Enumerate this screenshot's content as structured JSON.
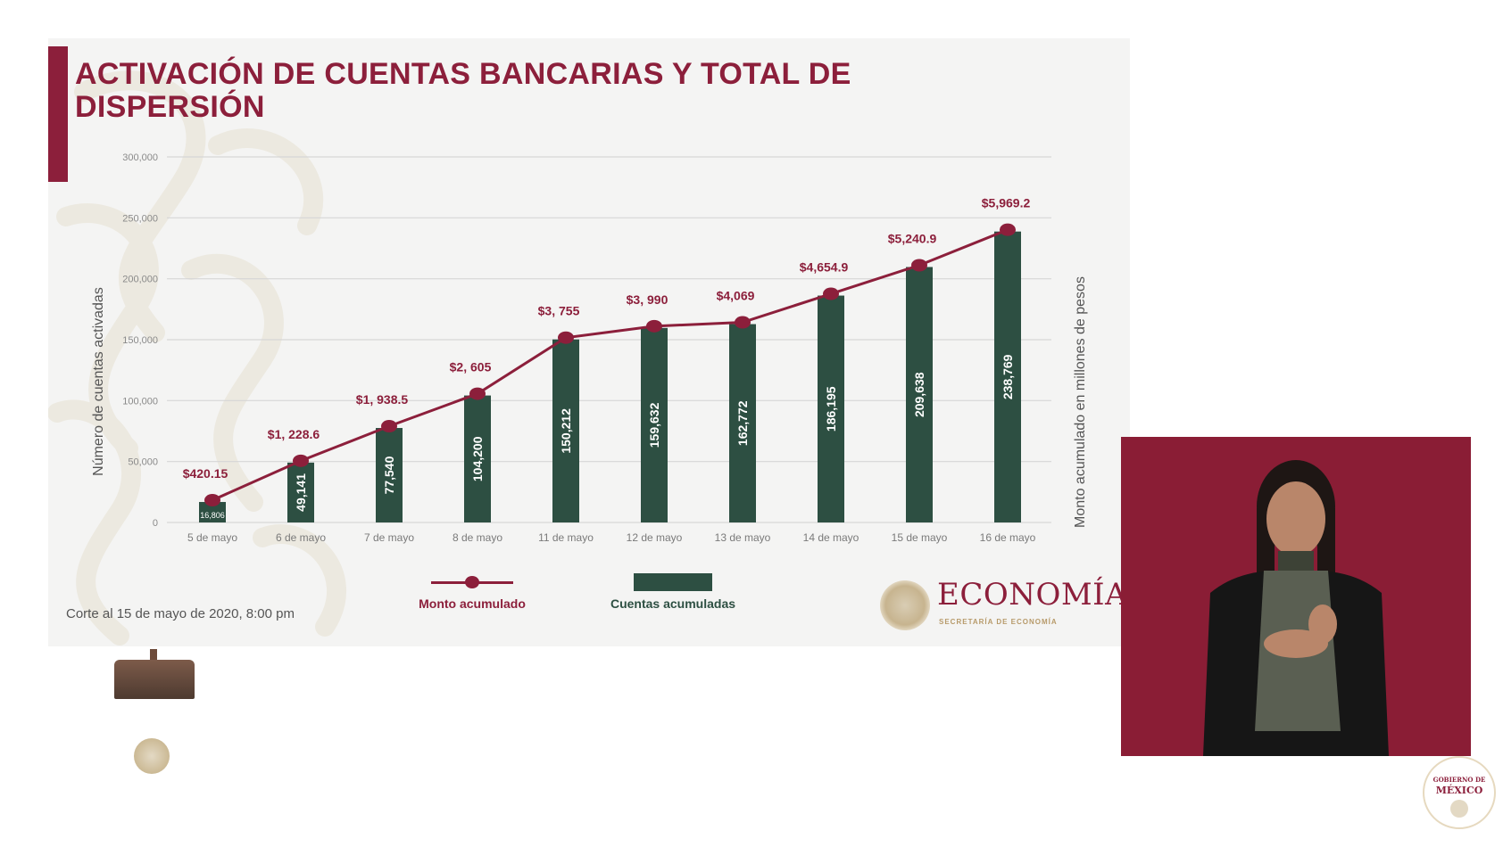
{
  "slide": {
    "title": "ACTIVACIÓN DE CUENTAS BANCARIAS Y TOTAL DE DISPERSIÓN",
    "title_line1": "ACTIVACIÓN DE CUENTAS BANCARIAS Y TOTAL DE",
    "title_line2": "DISPERSIÓN",
    "footnote": "Corte al 15 de mayo de 2020, 8:00 pm",
    "logo": {
      "name": "ECONOMÍA",
      "subtitle": "SECRETARÍA DE ECONOMÍA"
    }
  },
  "colors": {
    "accent": "#8c1f3b",
    "bar": "#2d4f42",
    "slide_bg": "#f4f4f3",
    "grid": "#d6d6d6",
    "axis_text": "#777777",
    "interpreter_bg": "#8a1d35"
  },
  "chart_data": {
    "type": "bar+line",
    "title": "ACTIVACIÓN DE CUENTAS BANCARIAS Y TOTAL DE DISPERSIÓN",
    "xlabel": "",
    "ylabel": "Número de cuentas activadas",
    "ylabel_right": "Monto acumulado en millones de pesos",
    "ylim": [
      0,
      300000
    ],
    "yticks": [
      0,
      50000,
      100000,
      150000,
      200000,
      250000,
      300000
    ],
    "ytick_labels": [
      "0",
      "50,000",
      "100,000",
      "150,000",
      "200,000",
      "250,000",
      "300,000"
    ],
    "grid": true,
    "legend_position": "bottom",
    "categories": [
      "5 de mayo",
      "6 de mayo",
      "7 de mayo",
      "8 de mayo",
      "11 de mayo",
      "12 de mayo",
      "13 de mayo",
      "14 de mayo",
      "15 de mayo",
      "16 de mayo"
    ],
    "series": [
      {
        "name": "Cuentas acumuladas",
        "type": "bar",
        "values": [
          16806,
          49141,
          77540,
          104200,
          150212,
          159632,
          162772,
          186195,
          209638,
          238769
        ],
        "labels": [
          "16,806",
          "49,141",
          "77,540",
          "104,200",
          "150,212",
          "159,632",
          "162,772",
          "186,195",
          "209,638",
          "238,769"
        ]
      },
      {
        "name": "Monto acumulado",
        "type": "line",
        "values": [
          420.15,
          1228.6,
          1938.5,
          2605,
          3755,
          3990,
          4069,
          4654.9,
          5240.9,
          5969.2
        ],
        "labels": [
          "$420.15",
          "$1, 228.6",
          "$1, 938.5",
          "$2, 605",
          "$3, 755",
          "$3, 990",
          "$4,069",
          "$4,654.9",
          "$5,240.9",
          "$5,969.2"
        ]
      }
    ],
    "legend": [
      {
        "label": "Monto acumulado",
        "type": "line"
      },
      {
        "label": "Cuentas acumuladas",
        "type": "bar"
      }
    ]
  },
  "branding": {
    "bottom_left": "GOBIERNO DE MÉXICO — logotipo",
    "bottom_right_line1": "GOBIERNO DE",
    "bottom_right_line2": "MÉXICO"
  },
  "interpreter": {
    "description": "Intérprete de lengua de señas"
  }
}
